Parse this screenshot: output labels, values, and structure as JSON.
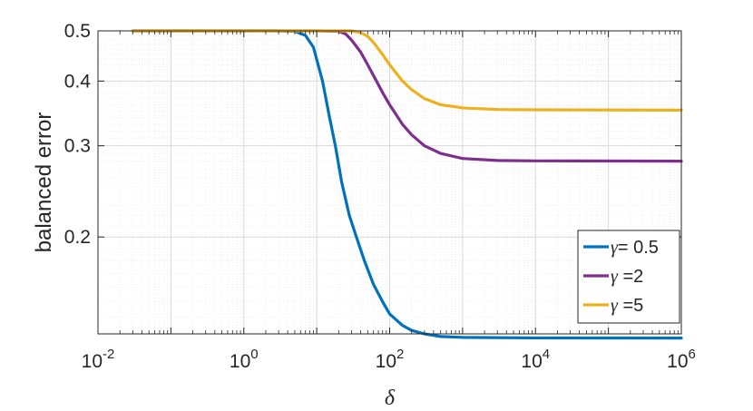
{
  "chart_data": {
    "type": "line",
    "xlabel": "δ",
    "ylabel": "balanced error",
    "xscale": "log",
    "yscale": "log",
    "xlim": [
      0.01,
      1000000
    ],
    "ylim": [
      0.13,
      0.5
    ],
    "grid": true,
    "legend_position": "bottom-right",
    "x_ticks": [
      {
        "value": 0.01,
        "base": "10",
        "exp": "-2"
      },
      {
        "value": 1,
        "base": "10",
        "exp": "0"
      },
      {
        "value": 100,
        "base": "10",
        "exp": "2"
      },
      {
        "value": 10000,
        "base": "10",
        "exp": "4"
      },
      {
        "value": 1000000,
        "base": "10",
        "exp": "6"
      }
    ],
    "y_ticks": [
      {
        "value": 0.2,
        "label": "0.2"
      },
      {
        "value": 0.3,
        "label": "0.3"
      },
      {
        "value": 0.4,
        "label": "0.4"
      },
      {
        "value": 0.5,
        "label": "0.5"
      }
    ],
    "series": [
      {
        "name": "γ= 0.5",
        "color": "#0072BD",
        "points": [
          [
            0.03,
            0.5
          ],
          [
            0.3,
            0.5
          ],
          [
            1,
            0.5
          ],
          [
            3,
            0.5
          ],
          [
            5,
            0.499
          ],
          [
            7,
            0.49
          ],
          [
            9,
            0.465
          ],
          [
            10,
            0.44
          ],
          [
            12,
            0.4
          ],
          [
            15,
            0.34
          ],
          [
            18,
            0.3
          ],
          [
            22,
            0.255
          ],
          [
            28,
            0.22
          ],
          [
            35,
            0.2
          ],
          [
            45,
            0.18
          ],
          [
            60,
            0.162
          ],
          [
            80,
            0.15
          ],
          [
            100,
            0.142
          ],
          [
            150,
            0.135
          ],
          [
            200,
            0.132
          ],
          [
            300,
            0.13
          ],
          [
            500,
            0.1285
          ],
          [
            1000,
            0.128
          ],
          [
            10000,
            0.1277
          ],
          [
            1000000,
            0.1276
          ]
        ]
      },
      {
        "name": "γ =2",
        "color": "#7E2F8E",
        "points": [
          [
            0.03,
            0.5
          ],
          [
            1,
            0.5
          ],
          [
            10,
            0.5
          ],
          [
            20,
            0.499
          ],
          [
            25,
            0.493
          ],
          [
            30,
            0.48
          ],
          [
            40,
            0.455
          ],
          [
            50,
            0.43
          ],
          [
            60,
            0.41
          ],
          [
            80,
            0.38
          ],
          [
            100,
            0.36
          ],
          [
            150,
            0.33
          ],
          [
            200,
            0.315
          ],
          [
            300,
            0.3
          ],
          [
            500,
            0.29
          ],
          [
            1000,
            0.2835
          ],
          [
            3000,
            0.281
          ],
          [
            10000,
            0.2805
          ],
          [
            1000000,
            0.2802
          ]
        ]
      },
      {
        "name": "γ =5",
        "color": "#EDB120",
        "points": [
          [
            0.03,
            0.5
          ],
          [
            1,
            0.5
          ],
          [
            10,
            0.5
          ],
          [
            30,
            0.5
          ],
          [
            40,
            0.496
          ],
          [
            50,
            0.488
          ],
          [
            60,
            0.475
          ],
          [
            80,
            0.45
          ],
          [
            100,
            0.43
          ],
          [
            150,
            0.4
          ],
          [
            200,
            0.385
          ],
          [
            300,
            0.37
          ],
          [
            500,
            0.36
          ],
          [
            1000,
            0.355
          ],
          [
            3000,
            0.3525
          ],
          [
            10000,
            0.352
          ],
          [
            1000000,
            0.3515
          ]
        ]
      }
    ]
  }
}
